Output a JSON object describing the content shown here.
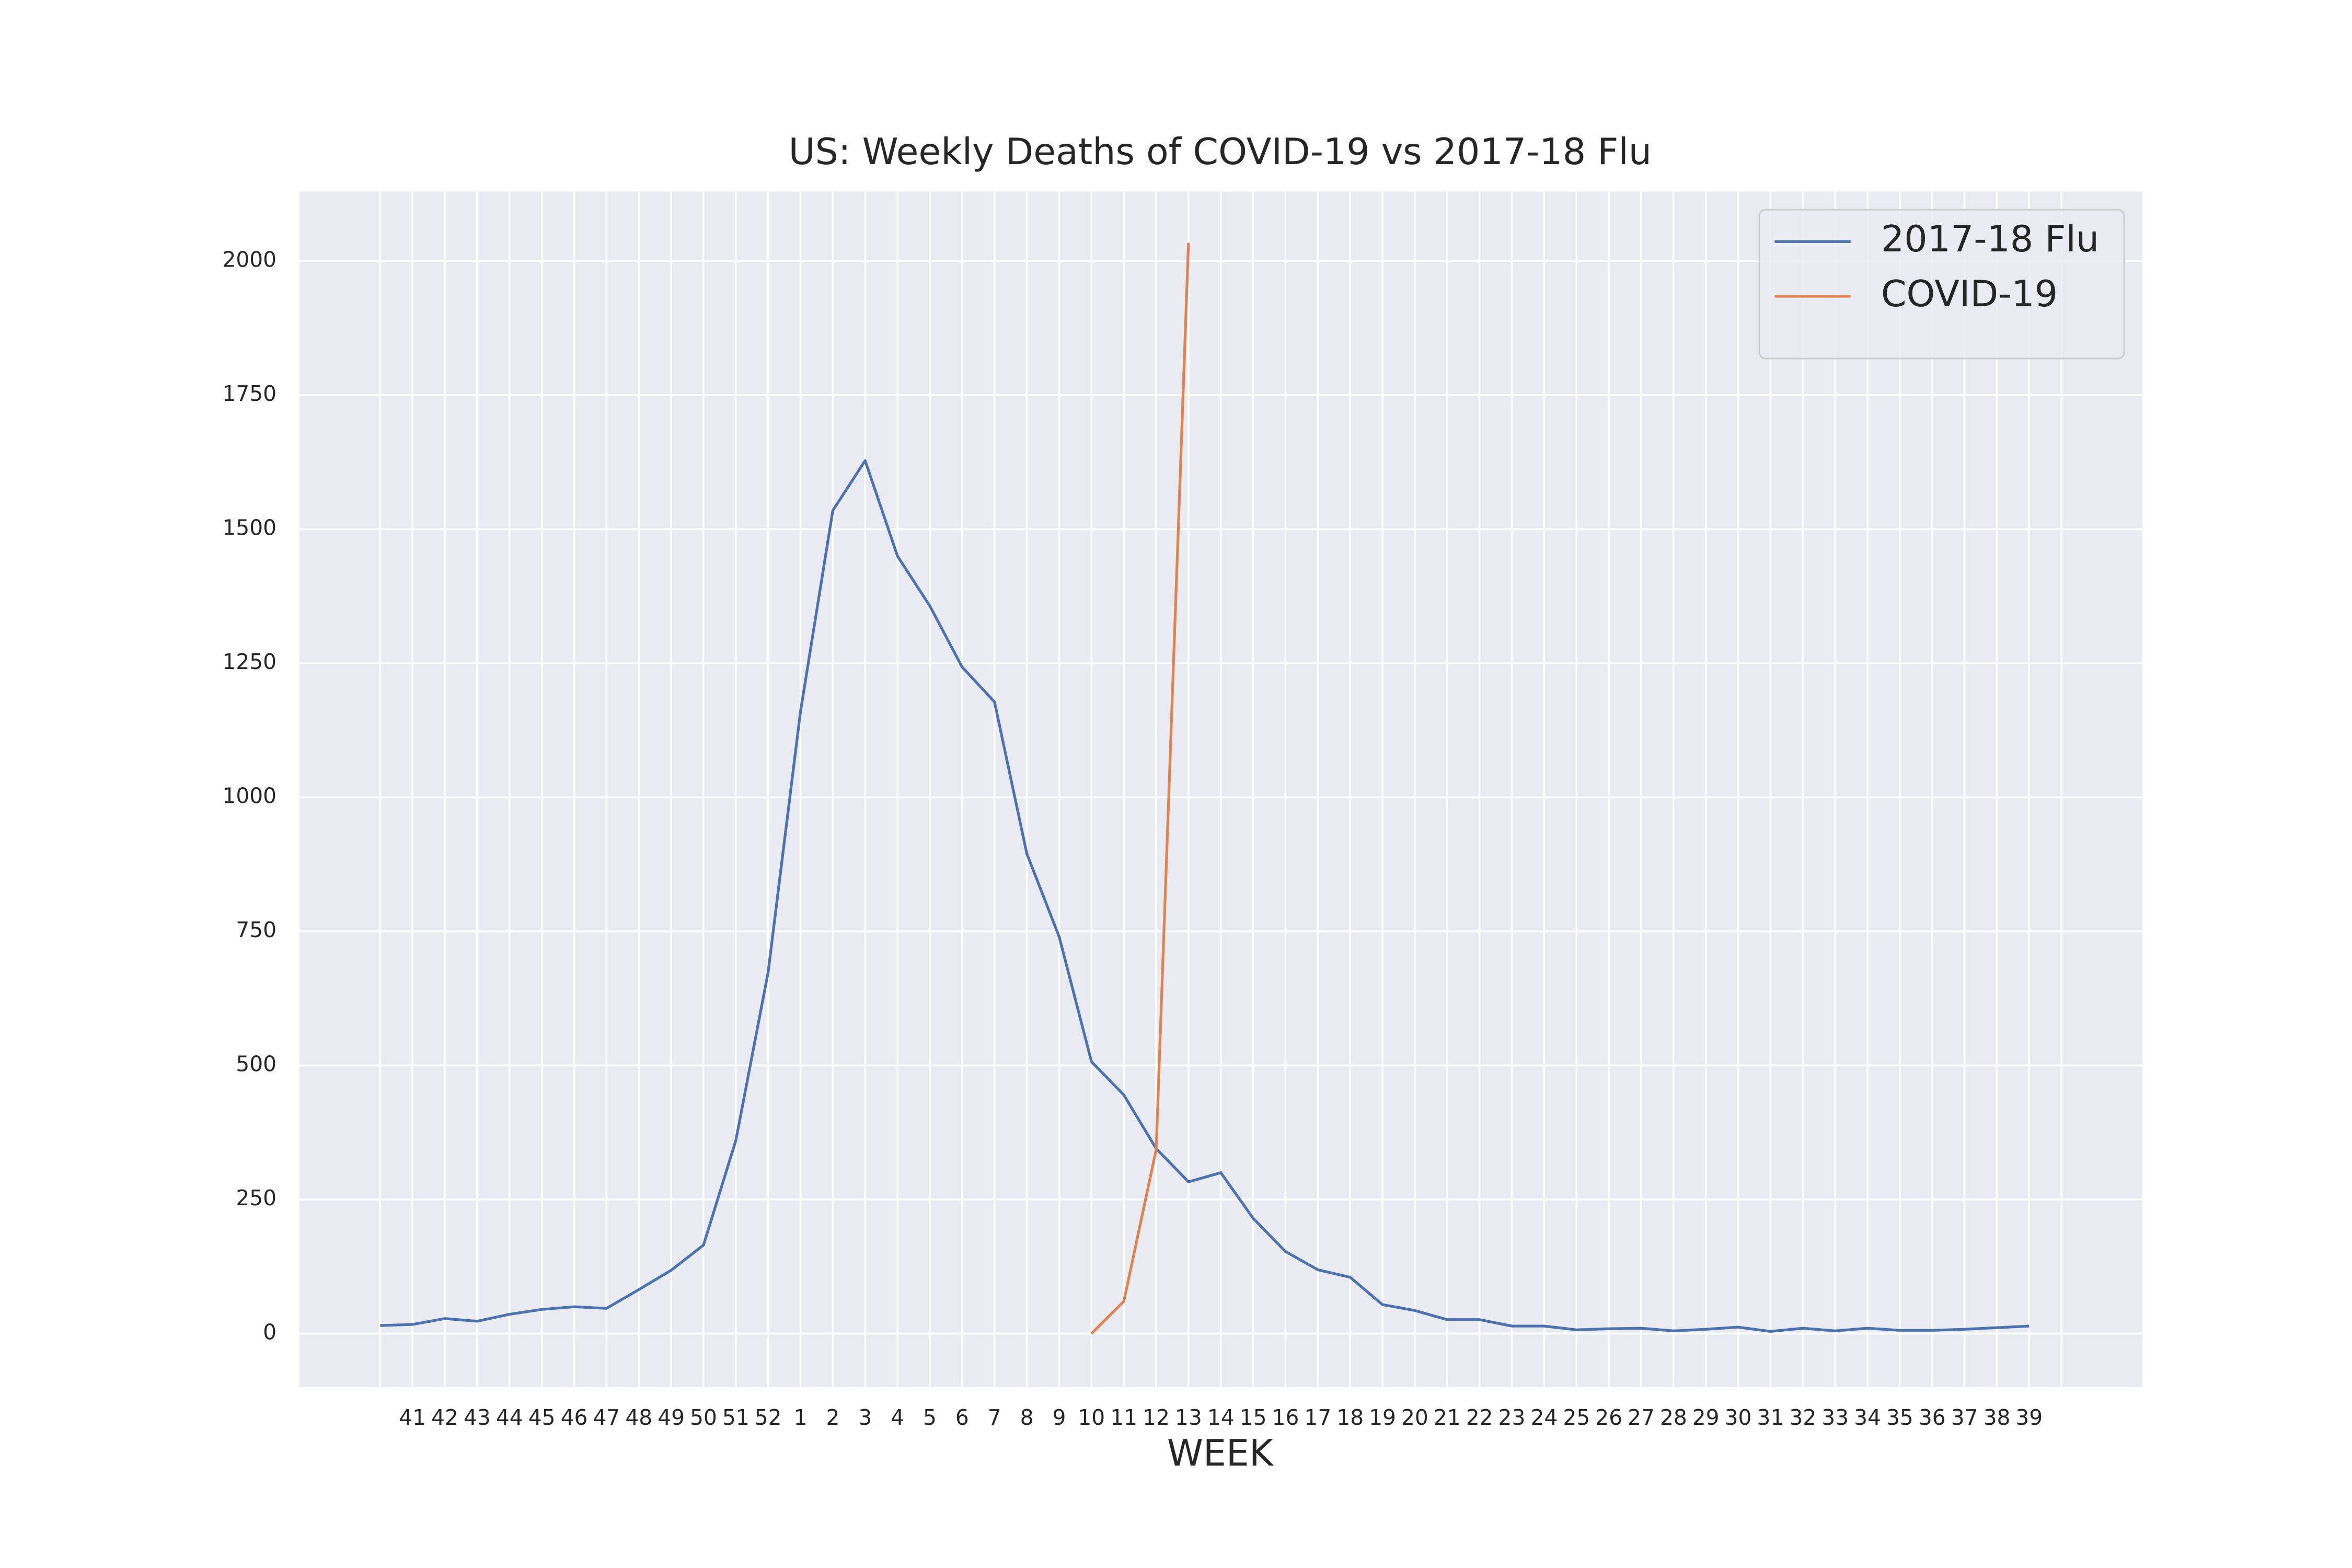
{
  "chart_data": {
    "type": "line",
    "title": "US: Weekly Deaths of COVID-19 vs 2017-18 Flu",
    "x_label": "WEEK",
    "categories": [
      null,
      "41",
      "42",
      "43",
      "44",
      "45",
      "46",
      "47",
      "48",
      "49",
      "50",
      "51",
      "52",
      "1",
      "2",
      "3",
      "4",
      "5",
      "6",
      "7",
      "8",
      "9",
      "10",
      "11",
      "12",
      "13",
      "14",
      "15",
      "16",
      "17",
      "18",
      "19",
      "20",
      "21",
      "22",
      "23",
      "24",
      "25",
      "26",
      "27",
      "28",
      "29",
      "30",
      "31",
      "32",
      "33",
      "34",
      "35",
      "36",
      "37",
      "38",
      "39",
      null
    ],
    "series": [
      {
        "name": "2017-18 Flu",
        "color": "#4c72b0",
        "values": [
          15,
          17,
          28,
          23,
          36,
          45,
          50,
          47,
          82,
          118,
          165,
          360,
          674,
          1160,
          1535,
          1628,
          1450,
          1357,
          1243,
          1178,
          895,
          740,
          507,
          445,
          345,
          283,
          300,
          215,
          153,
          119,
          105,
          54,
          43,
          26,
          26,
          14,
          14,
          7,
          9,
          10,
          5,
          8,
          12,
          4,
          10,
          5,
          10,
          6,
          6,
          8,
          11,
          14,
          null
        ]
      },
      {
        "name": "COVID-19",
        "color": "#dd8452",
        "values": [
          null,
          null,
          null,
          null,
          null,
          null,
          null,
          null,
          null,
          null,
          null,
          null,
          null,
          null,
          null,
          null,
          null,
          null,
          null,
          null,
          null,
          null,
          0,
          60,
          343,
          2034,
          null,
          null,
          null,
          null,
          null,
          null,
          null,
          null,
          null,
          null,
          null,
          null,
          null,
          null,
          null,
          null,
          null,
          null,
          null,
          null,
          null,
          null,
          null,
          null,
          null,
          null,
          null
        ]
      }
    ],
    "ylim": [
      -100,
      2130
    ],
    "yticks": [
      0,
      250,
      500,
      750,
      1000,
      1250,
      1500,
      1750,
      2000
    ],
    "grid": true,
    "legend": "upper right"
  }
}
